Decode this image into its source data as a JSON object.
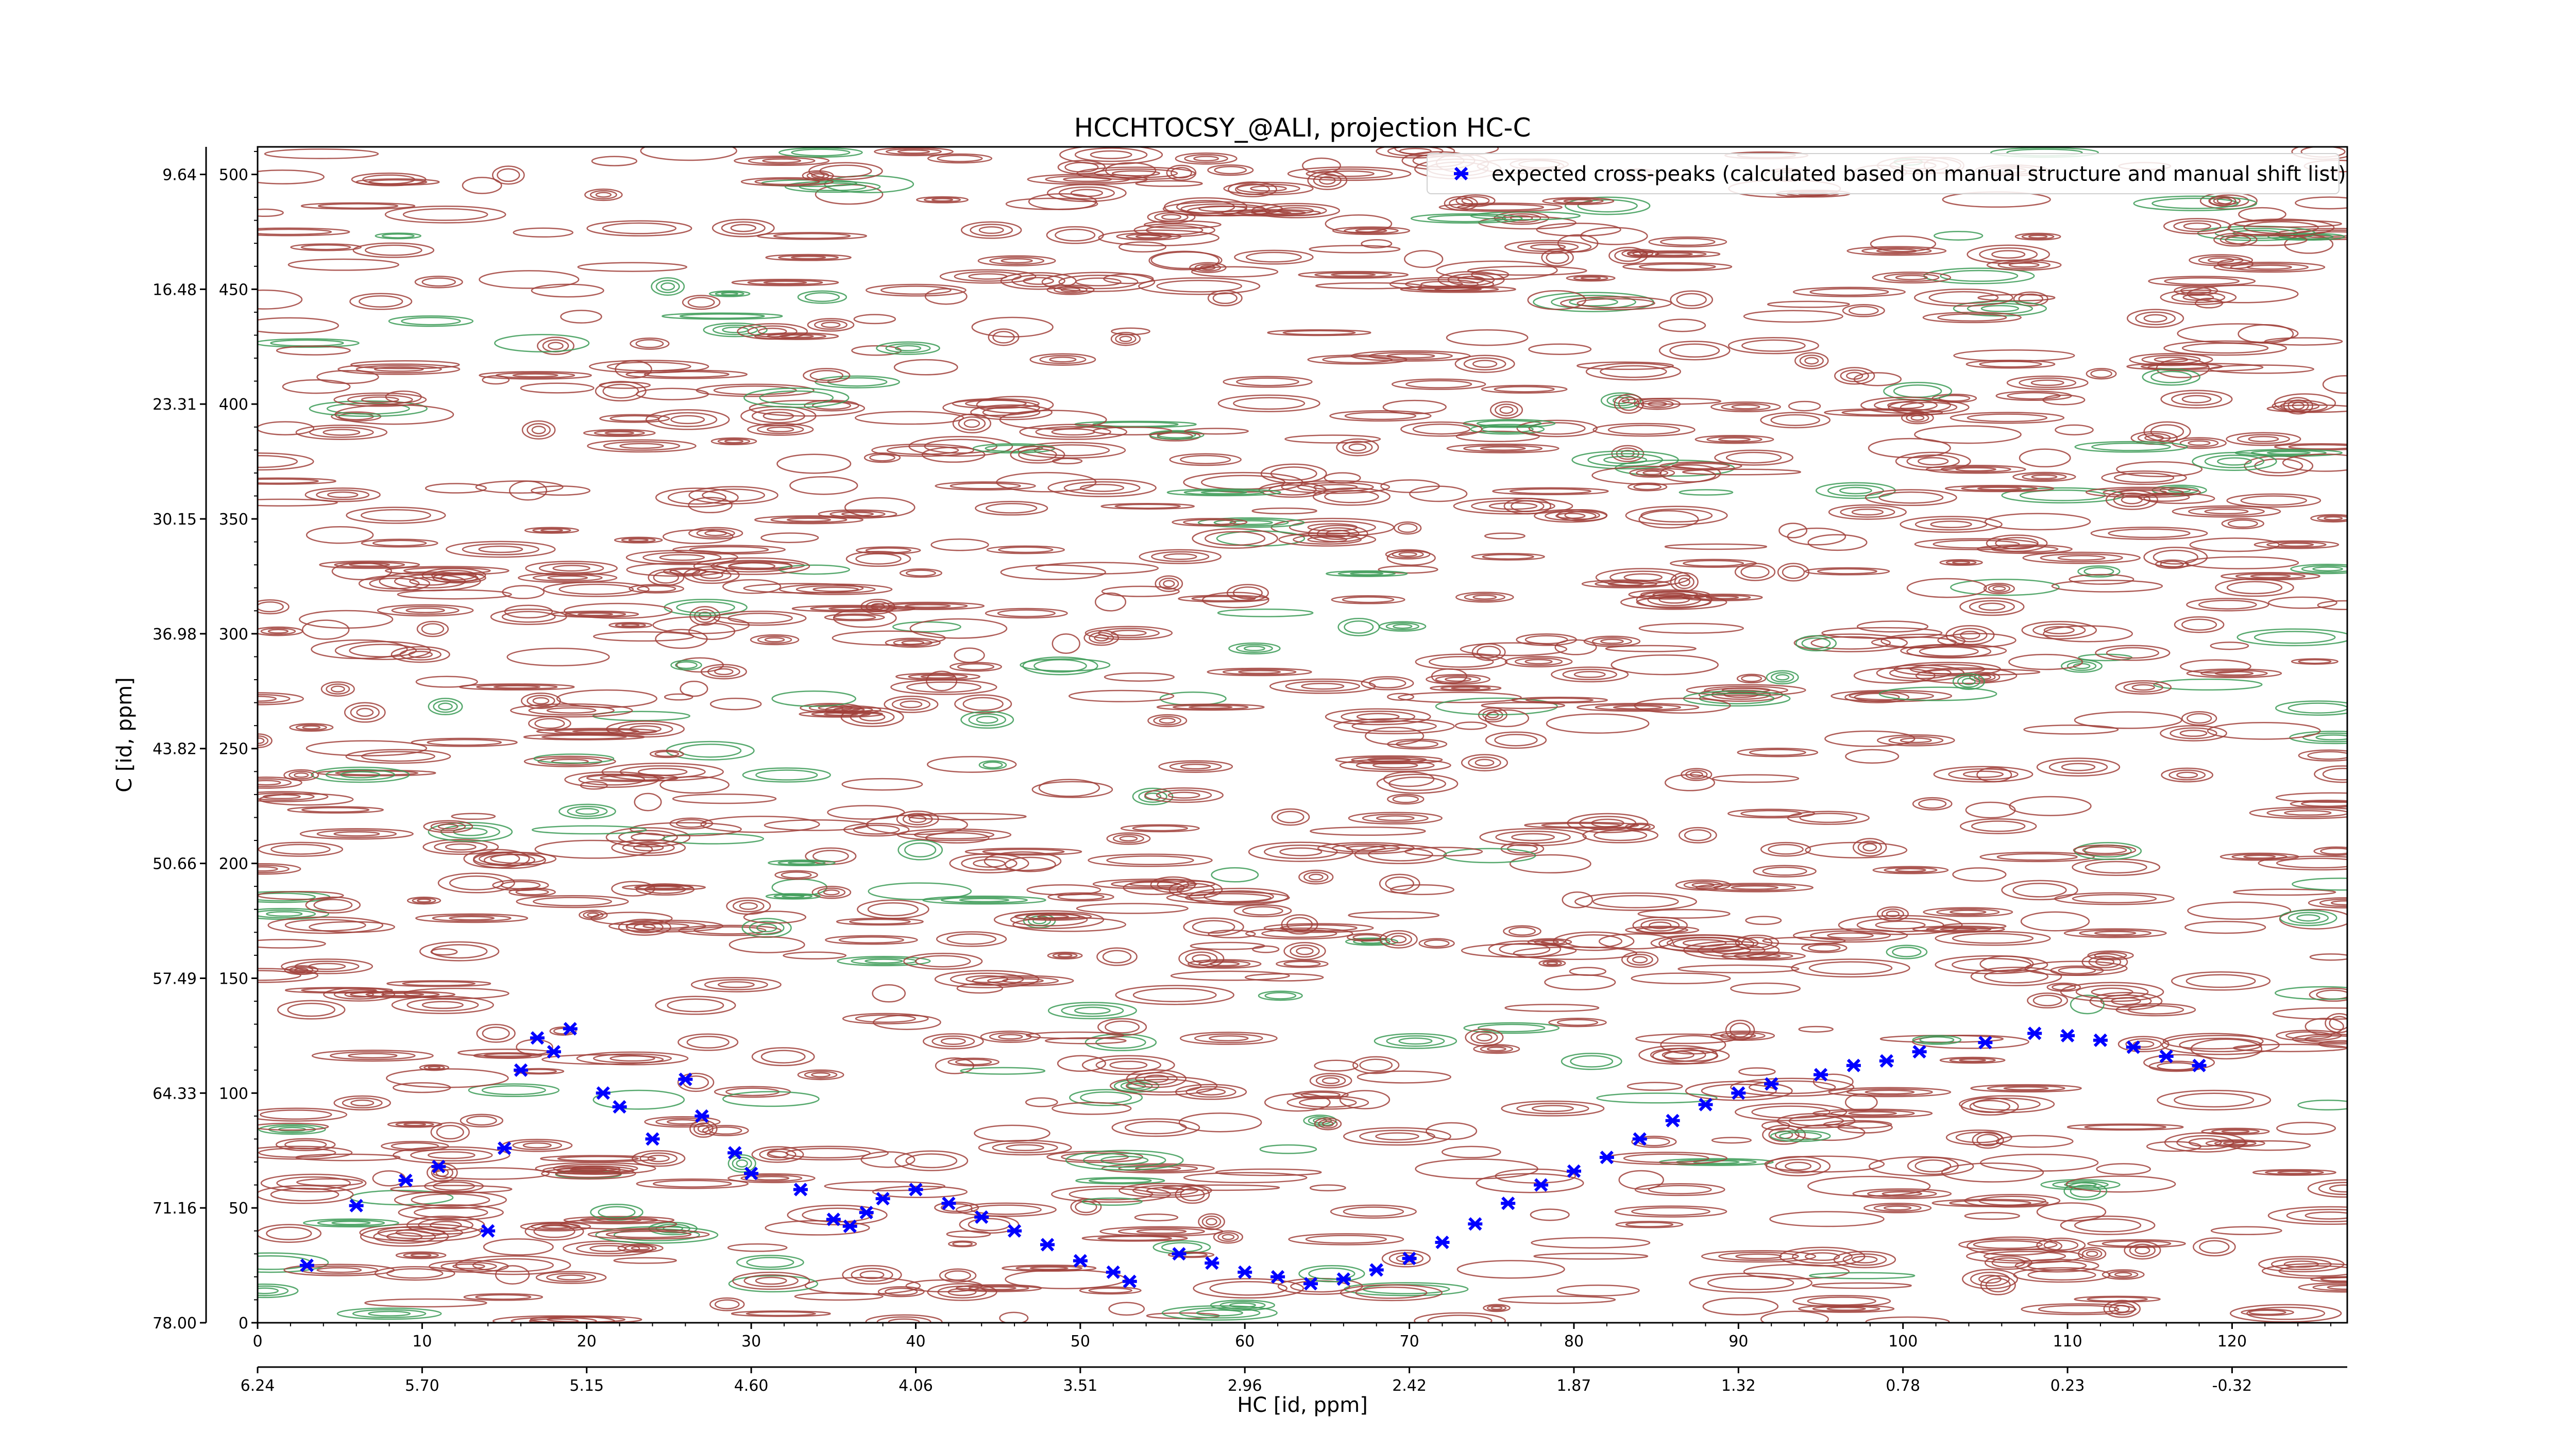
{
  "chart_data": {
    "type": "scatter",
    "title": "HCCHTOCSY_@ALI, projection HC-C",
    "xlabel": "HC [id, ppm]",
    "ylabel": "C [id, ppm]",
    "x_index_range": [
      0,
      127
    ],
    "y_index_range": [
      0,
      512
    ],
    "x_index_ticks": [
      "0",
      "10",
      "20",
      "30",
      "40",
      "50",
      "60",
      "70",
      "80",
      "90",
      "100",
      "110",
      "120"
    ],
    "x_ppm_ticks": [
      "6.24",
      "5.70",
      "5.15",
      "4.60",
      "4.06",
      "3.51",
      "2.96",
      "2.42",
      "1.87",
      "1.32",
      "0.78",
      "0.23",
      "-0.32"
    ],
    "y_index_ticks": [
      "0",
      "50",
      "100",
      "150",
      "200",
      "250",
      "300",
      "350",
      "400",
      "450",
      "500"
    ],
    "y_ppm_ticks": [
      "78.00",
      "71.16",
      "64.33",
      "57.49",
      "50.66",
      "43.82",
      "36.98",
      "30.15",
      "23.31",
      "16.48",
      "9.64"
    ],
    "legend": {
      "position": "top-right",
      "entry": "expected cross-peaks (calculated based on manual structure and manual shift list)"
    },
    "colors": {
      "positive_contours": "#a0403a",
      "negative_contours": "#3a9a55",
      "points": "#0000ff"
    },
    "peaks": [
      [
        3,
        25
      ],
      [
        6,
        51
      ],
      [
        9,
        62
      ],
      [
        11,
        68
      ],
      [
        14,
        40
      ],
      [
        15,
        76
      ],
      [
        16,
        110
      ],
      [
        17,
        124
      ],
      [
        18,
        118
      ],
      [
        19,
        128
      ],
      [
        21,
        100
      ],
      [
        22,
        94
      ],
      [
        24,
        80
      ],
      [
        26,
        106
      ],
      [
        27,
        90
      ],
      [
        29,
        74
      ],
      [
        30,
        65
      ],
      [
        33,
        58
      ],
      [
        35,
        45
      ],
      [
        36,
        42
      ],
      [
        37,
        48
      ],
      [
        38,
        54
      ],
      [
        40,
        58
      ],
      [
        42,
        52
      ],
      [
        44,
        46
      ],
      [
        46,
        40
      ],
      [
        48,
        34
      ],
      [
        50,
        27
      ],
      [
        52,
        22
      ],
      [
        53,
        18
      ],
      [
        56,
        30
      ],
      [
        58,
        26
      ],
      [
        60,
        22
      ],
      [
        62,
        20
      ],
      [
        64,
        17
      ],
      [
        66,
        19
      ],
      [
        68,
        23
      ],
      [
        70,
        28
      ],
      [
        72,
        35
      ],
      [
        74,
        43
      ],
      [
        76,
        52
      ],
      [
        78,
        60
      ],
      [
        80,
        66
      ],
      [
        82,
        72
      ],
      [
        84,
        80
      ],
      [
        86,
        88
      ],
      [
        88,
        95
      ],
      [
        90,
        100
      ],
      [
        92,
        104
      ],
      [
        95,
        108
      ],
      [
        97,
        112
      ],
      [
        99,
        114
      ],
      [
        101,
        118
      ],
      [
        105,
        122
      ],
      [
        108,
        126
      ],
      [
        110,
        125
      ],
      [
        112,
        123
      ],
      [
        114,
        120
      ],
      [
        116,
        116
      ],
      [
        118,
        112
      ]
    ]
  }
}
